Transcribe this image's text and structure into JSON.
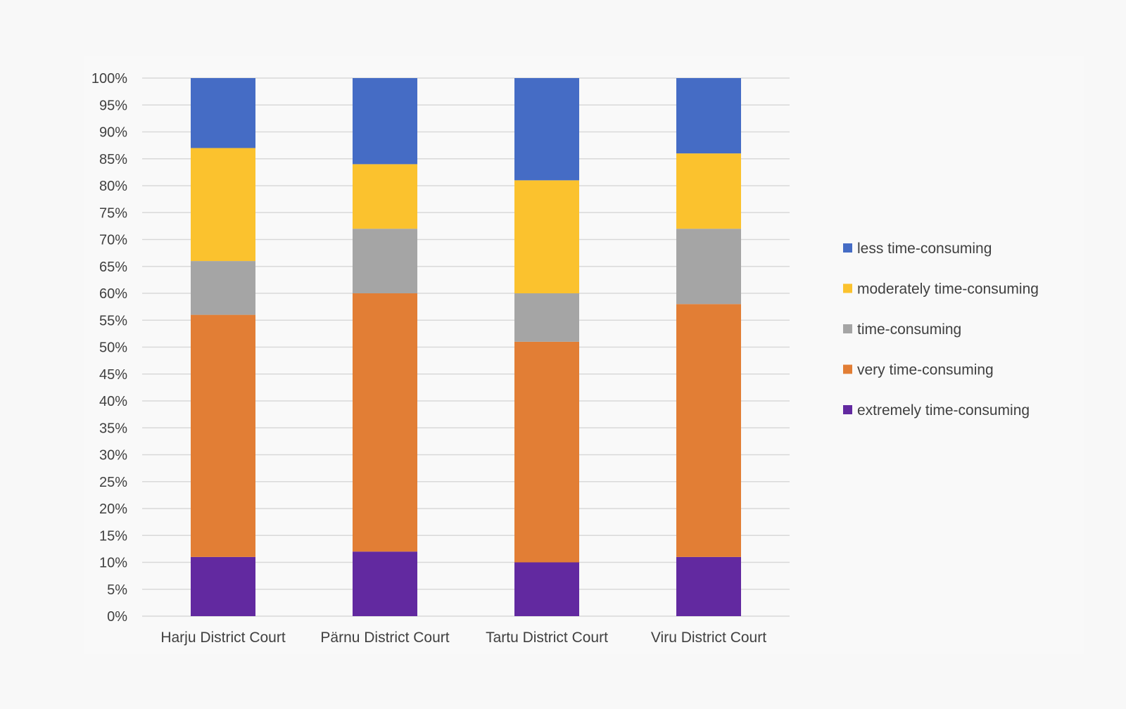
{
  "chart_data": {
    "type": "bar",
    "stacked": true,
    "percent_stacked": true,
    "categories": [
      "Harju District Court",
      "Pärnu District Court",
      "Tartu District Court",
      "Viru District Court"
    ],
    "series": [
      {
        "name": "extremely time-consuming",
        "color": "#6229a0",
        "values": [
          11,
          12,
          10,
          11
        ]
      },
      {
        "name": "very time-consuming",
        "color": "#e27e35",
        "values": [
          45,
          48,
          41,
          47
        ]
      },
      {
        "name": "time-consuming",
        "color": "#a5a5a5",
        "values": [
          10,
          12,
          9,
          14
        ]
      },
      {
        "name": "moderately time-consuming",
        "color": "#fbc22e",
        "values": [
          21,
          12,
          21,
          14
        ]
      },
      {
        "name": "less time-consuming",
        "color": "#456cc5",
        "values": [
          13,
          16,
          19,
          14
        ]
      }
    ],
    "legend_order": [
      "less time-consuming",
      "moderately time-consuming",
      "time-consuming",
      "very time-consuming",
      "extremely time-consuming"
    ],
    "y_ticks": [
      "0%",
      "5%",
      "10%",
      "15%",
      "20%",
      "25%",
      "30%",
      "35%",
      "40%",
      "45%",
      "50%",
      "55%",
      "60%",
      "65%",
      "70%",
      "75%",
      "80%",
      "85%",
      "90%",
      "95%",
      "100%"
    ],
    "ylim": [
      0,
      100
    ],
    "grid": true,
    "legend_position": "right"
  }
}
